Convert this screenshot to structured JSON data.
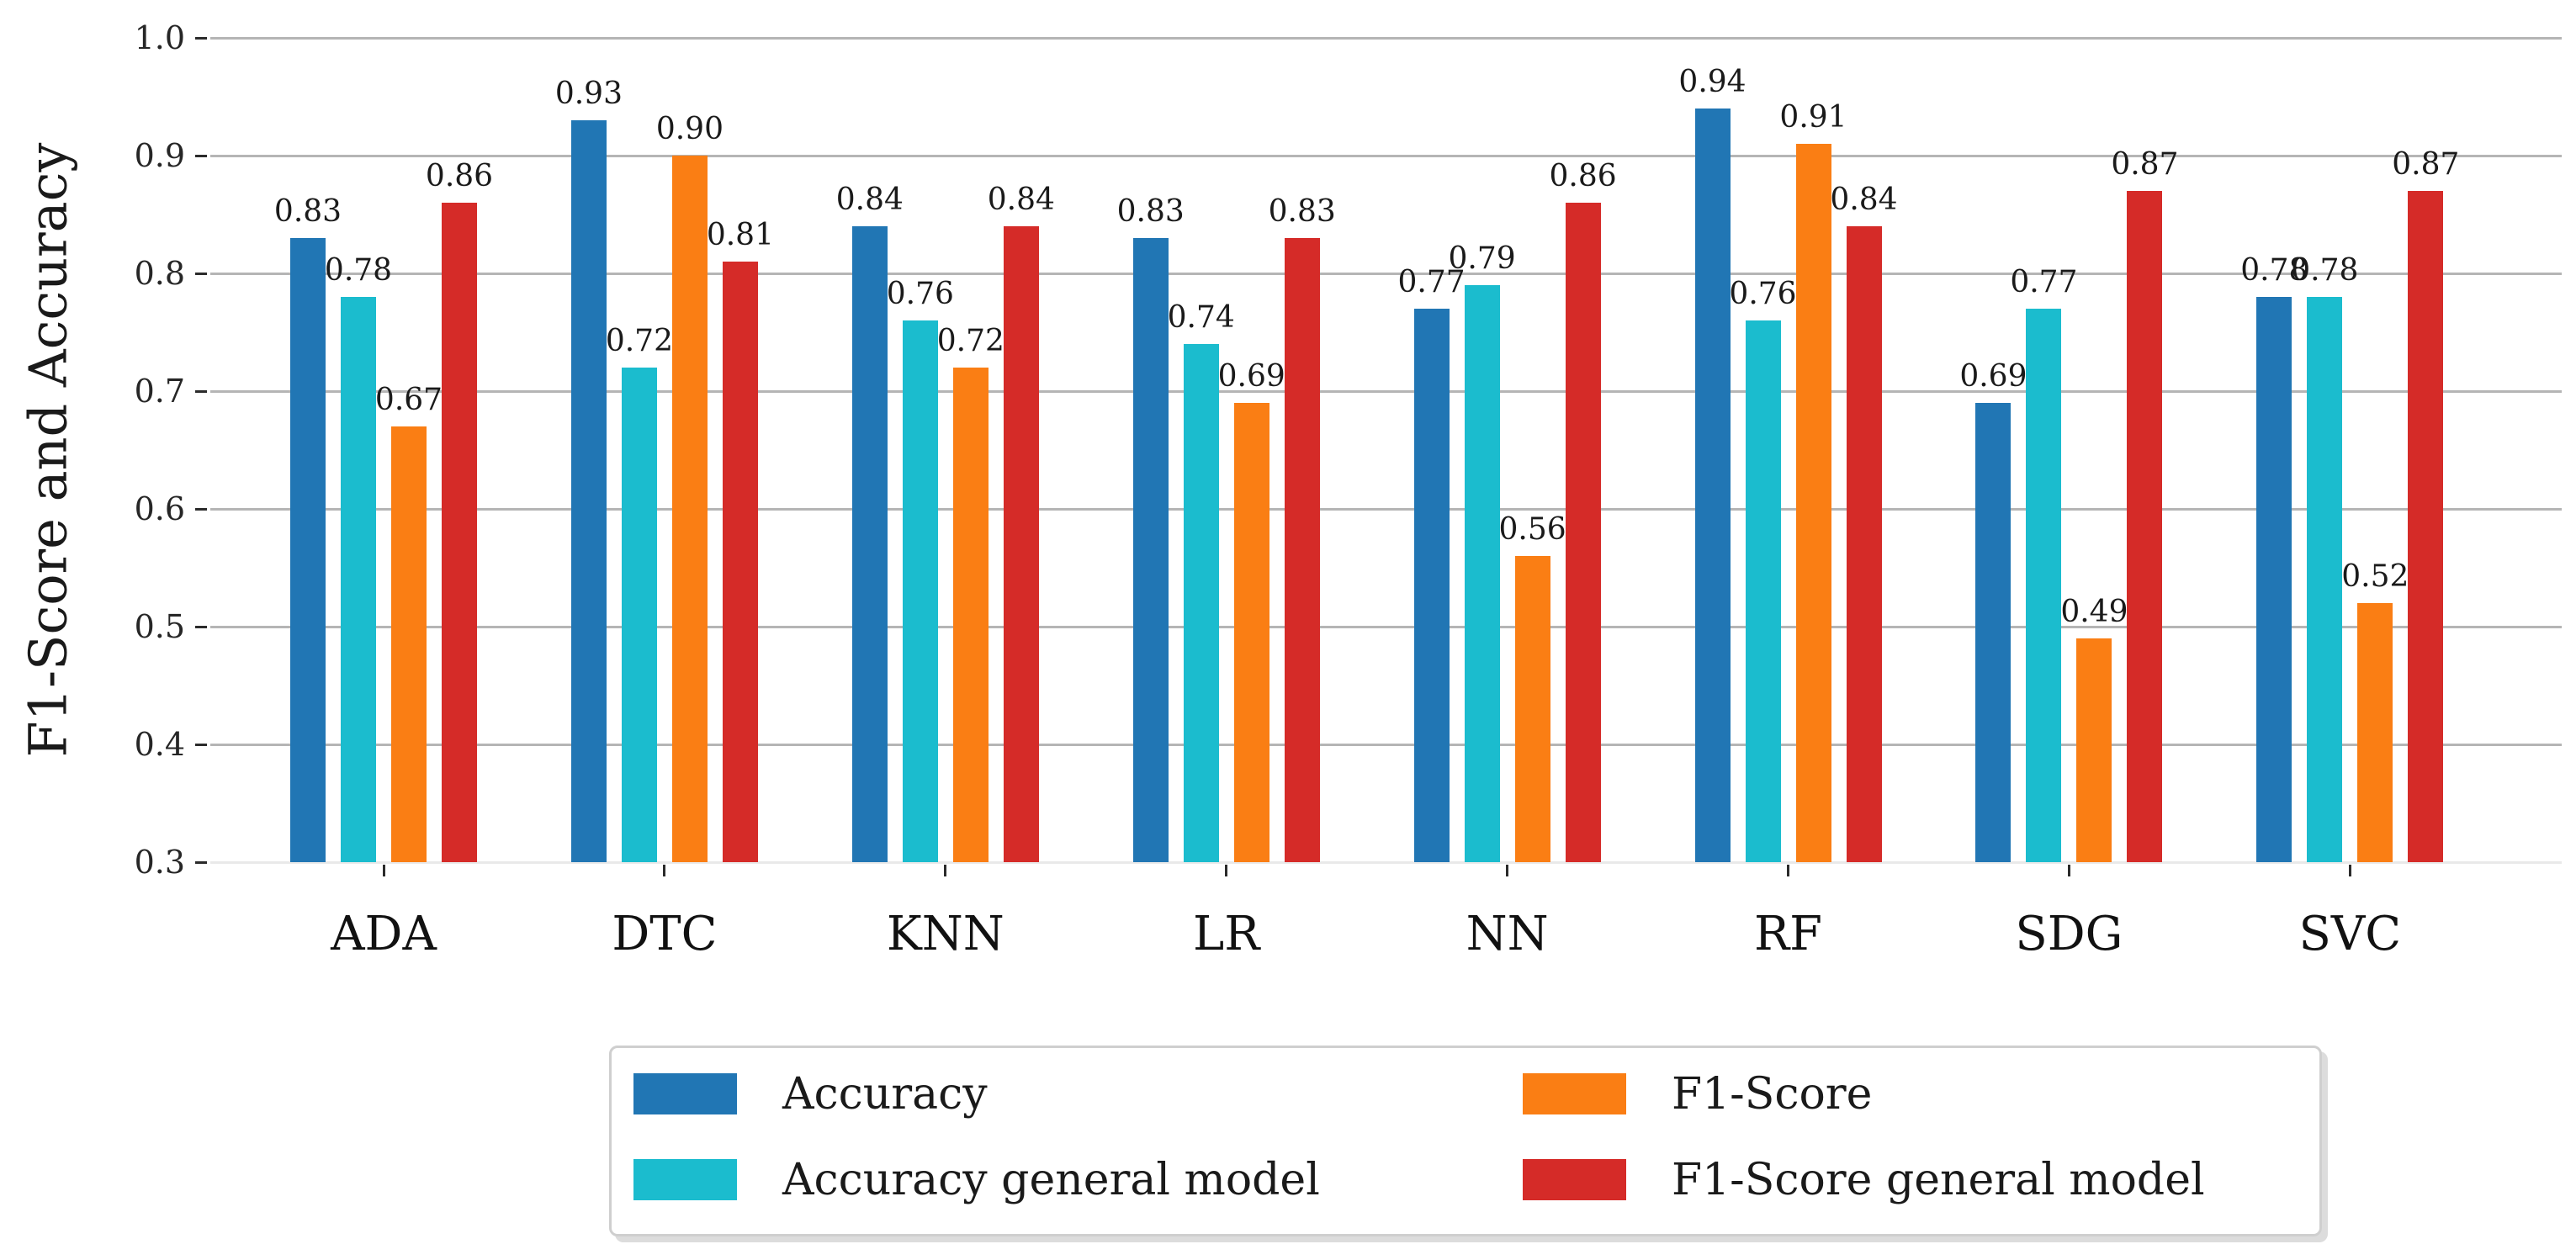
{
  "chart_data": {
    "type": "bar",
    "title": "",
    "xlabel": "",
    "ylabel": "F1-Score and Accuracy",
    "ylim": [
      0.3,
      1.0
    ],
    "ytick_step": 0.1,
    "ytick_labels": [
      "1.0",
      "0.9",
      "0.8",
      "0.7",
      "0.6",
      "0.5",
      "0.4",
      "0.3"
    ],
    "grid": true,
    "value_label_decimals": 2,
    "legend_position": "bottom",
    "legend_columns": 2,
    "categories": [
      "ADA",
      "DTC",
      "KNN",
      "LR",
      "NN",
      "RF",
      "SDG",
      "SVC"
    ],
    "series": [
      {
        "name": "Accuracy",
        "color": "#2176B4",
        "values": [
          0.83,
          0.93,
          0.84,
          0.83,
          0.77,
          0.94,
          0.69,
          0.78
        ]
      },
      {
        "name": "Accuracy general model",
        "color": "#1BBCCE",
        "values": [
          0.78,
          0.72,
          0.76,
          0.74,
          0.79,
          0.76,
          0.77,
          0.78
        ]
      },
      {
        "name": "F1-Score",
        "color": "#FA7E14",
        "values": [
          0.67,
          0.9,
          0.72,
          0.69,
          0.56,
          0.91,
          0.49,
          0.52
        ]
      },
      {
        "name": "F1-Score general model",
        "color": "#D52B28",
        "values": [
          0.86,
          0.81,
          0.84,
          0.83,
          0.86,
          0.84,
          0.87,
          0.87
        ]
      }
    ],
    "colors": {
      "gridline": "#b5b5b5",
      "baseline": "#e9e9e9",
      "tick": "#2b2b2b",
      "text": "#1a1a1a"
    }
  }
}
